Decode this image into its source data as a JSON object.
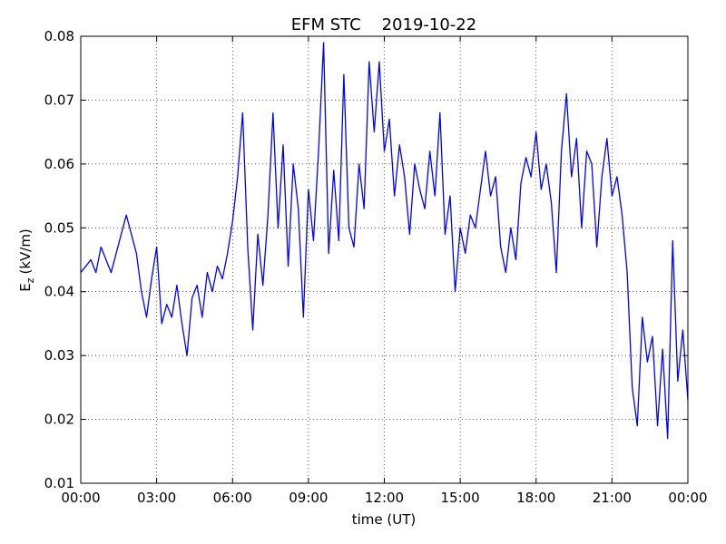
{
  "chart_data": {
    "type": "line",
    "title": "EFM STC    2019-10-22",
    "xlabel": "time (UT)",
    "ylabel": {
      "symbol": "E",
      "subscript": "z",
      "unit": "(kV/m)"
    },
    "color": "#0000ff",
    "grid": true,
    "xlim": [
      0,
      24
    ],
    "xticks": [
      {
        "value": 0,
        "label": "00:00"
      },
      {
        "value": 3,
        "label": "03:00"
      },
      {
        "value": 6,
        "label": "06:00"
      },
      {
        "value": 9,
        "label": "09:00"
      },
      {
        "value": 12,
        "label": "12:00"
      },
      {
        "value": 15,
        "label": "15:00"
      },
      {
        "value": 18,
        "label": "18:00"
      },
      {
        "value": 21,
        "label": "21:00"
      },
      {
        "value": 24,
        "label": "00:00"
      }
    ],
    "ylim": [
      0.01,
      0.08
    ],
    "yticks": [
      0.01,
      0.02,
      0.03,
      0.04,
      0.05,
      0.06,
      0.07,
      0.08
    ],
    "x": [
      0,
      0.2,
      0.4,
      0.6,
      0.8,
      1,
      1.2,
      1.4,
      1.6,
      1.8,
      2,
      2.2,
      2.4,
      2.6,
      2.8,
      3,
      3.2,
      3.4,
      3.6,
      3.8,
      4,
      4.2,
      4.4,
      4.6,
      4.8,
      5,
      5.2,
      5.4,
      5.6,
      5.8,
      6,
      6.2,
      6.4,
      6.6,
      6.8,
      7,
      7.2,
      7.4,
      7.6,
      7.8,
      8,
      8.2,
      8.4,
      8.6,
      8.8,
      9,
      9.2,
      9.4,
      9.6,
      9.8,
      10,
      10.2,
      10.4,
      10.6,
      10.8,
      11,
      11.2,
      11.4,
      11.6,
      11.8,
      12,
      12.2,
      12.4,
      12.6,
      12.8,
      13,
      13.2,
      13.4,
      13.6,
      13.8,
      14,
      14.2,
      14.4,
      14.6,
      14.8,
      15,
      15.2,
      15.4,
      15.6,
      15.8,
      16,
      16.2,
      16.4,
      16.6,
      16.8,
      17,
      17.2,
      17.4,
      17.6,
      17.8,
      18,
      18.2,
      18.4,
      18.6,
      18.8,
      19,
      19.2,
      19.4,
      19.6,
      19.8,
      20,
      20.2,
      20.4,
      20.6,
      20.8,
      21,
      21.2,
      21.4,
      21.6,
      21.8,
      22,
      22.2,
      22.4,
      22.6,
      22.8,
      23,
      23.2,
      23.4,
      23.6,
      23.8,
      24
    ],
    "values": [
      0.043,
      0.044,
      0.045,
      0.043,
      0.047,
      0.045,
      0.043,
      0.046,
      0.049,
      0.052,
      0.049,
      0.046,
      0.04,
      0.036,
      0.042,
      0.047,
      0.035,
      0.038,
      0.036,
      0.041,
      0.035,
      0.03,
      0.039,
      0.041,
      0.036,
      0.043,
      0.04,
      0.044,
      0.042,
      0.046,
      0.051,
      0.058,
      0.068,
      0.047,
      0.034,
      0.049,
      0.041,
      0.052,
      0.068,
      0.05,
      0.063,
      0.044,
      0.06,
      0.053,
      0.036,
      0.056,
      0.048,
      0.062,
      0.079,
      0.046,
      0.059,
      0.048,
      0.074,
      0.05,
      0.047,
      0.06,
      0.053,
      0.076,
      0.065,
      0.076,
      0.062,
      0.067,
      0.055,
      0.063,
      0.058,
      0.049,
      0.06,
      0.056,
      0.053,
      0.062,
      0.055,
      0.068,
      0.049,
      0.055,
      0.04,
      0.05,
      0.046,
      0.052,
      0.05,
      0.056,
      0.062,
      0.055,
      0.058,
      0.047,
      0.043,
      0.05,
      0.045,
      0.057,
      0.061,
      0.058,
      0.065,
      0.056,
      0.06,
      0.054,
      0.043,
      0.062,
      0.071,
      0.058,
      0.064,
      0.05,
      0.062,
      0.06,
      0.047,
      0.058,
      0.064,
      0.055,
      0.058,
      0.052,
      0.043,
      0.025,
      0.019,
      0.036,
      0.029,
      0.033,
      0.019,
      0.031,
      0.017,
      0.048,
      0.026,
      0.034,
      0.023
    ]
  }
}
